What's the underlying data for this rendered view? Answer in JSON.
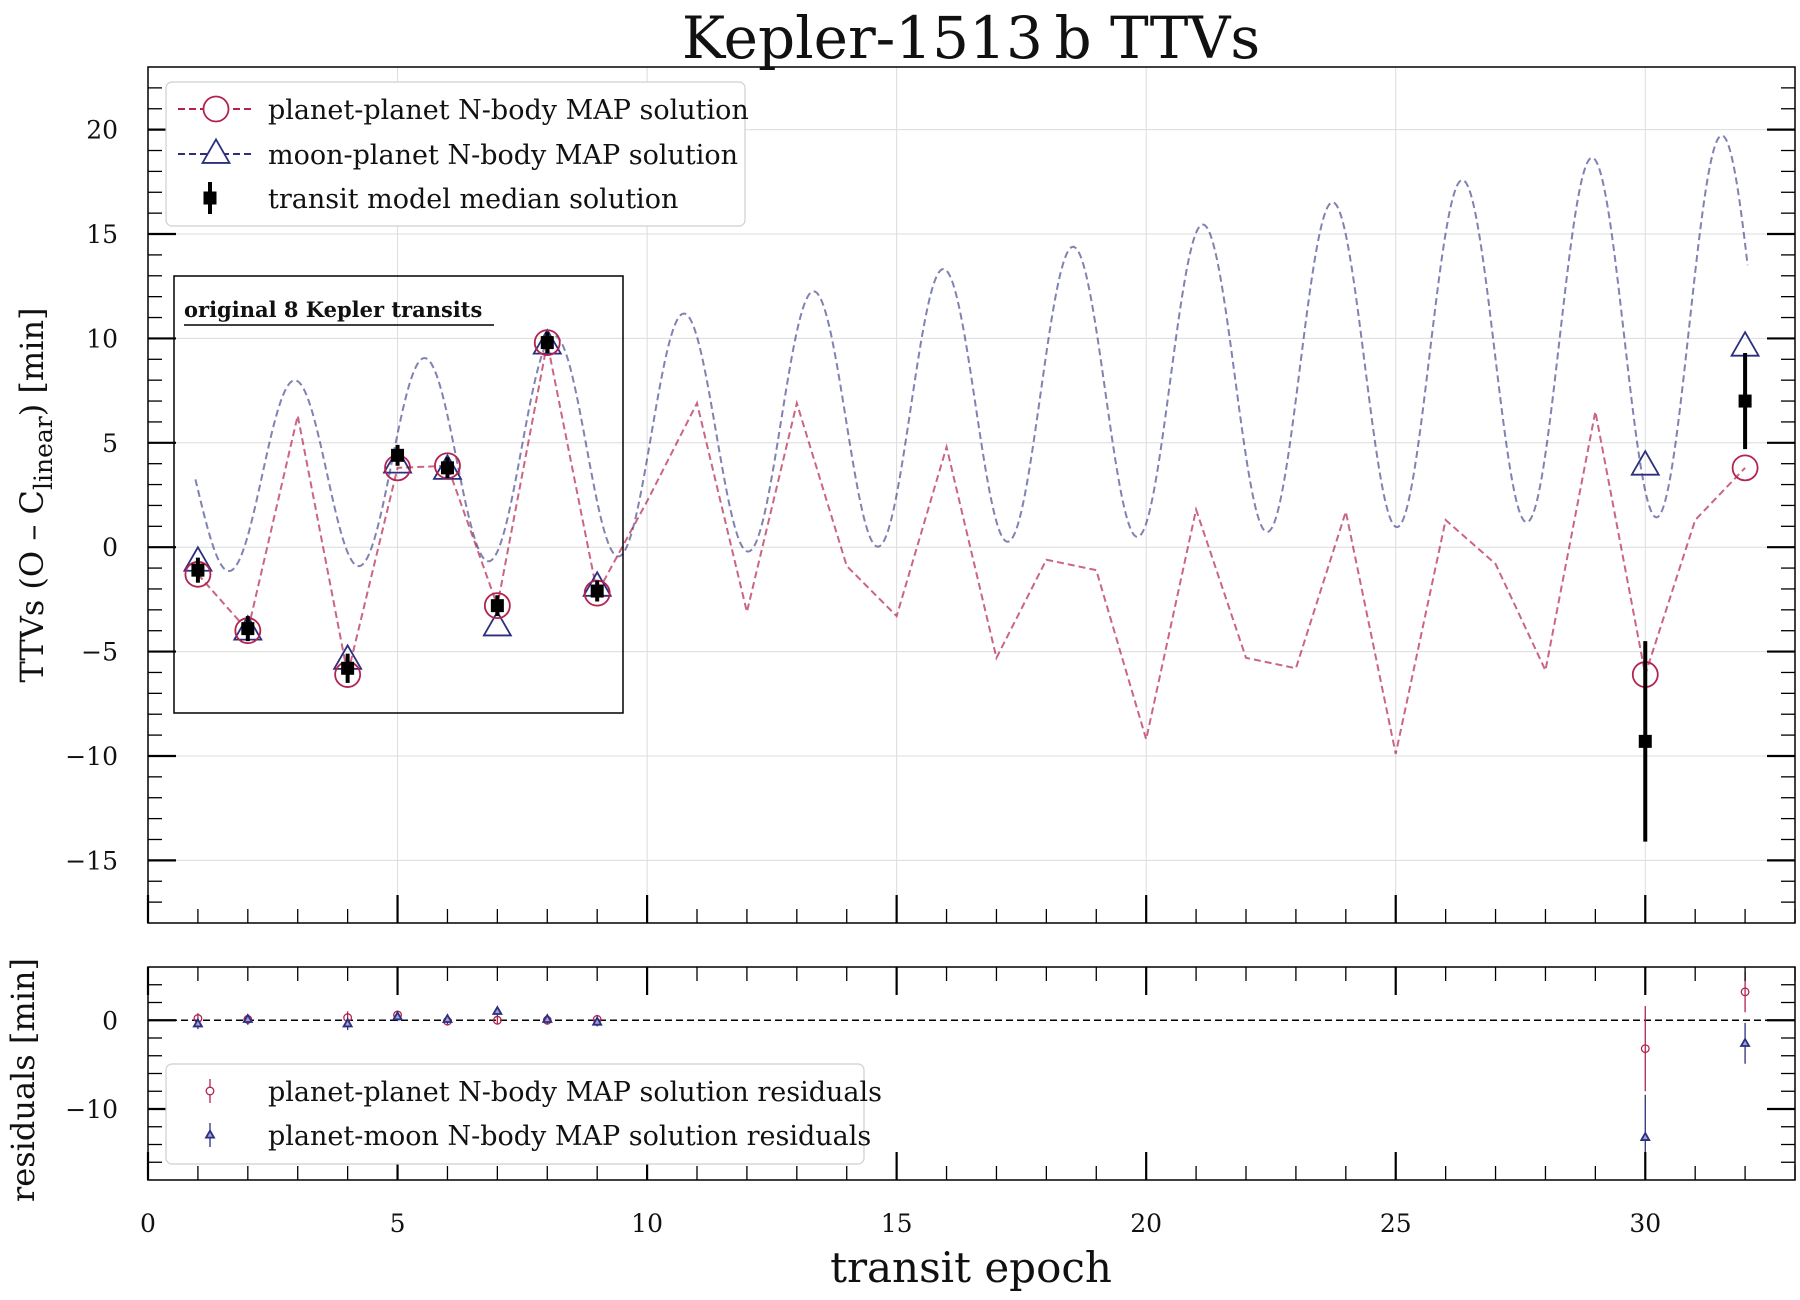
{
  "chart_data": [
    {
      "type": "line",
      "title": "Kepler-1513 b TTVs",
      "ylabel": "TTVs (O – C",
      "ylabel_sub": "linear",
      "ylabel_tail": ") [min]",
      "xlim": [
        0,
        33
      ],
      "ylim": [
        -18,
        23
      ],
      "yticks": [
        -15,
        -10,
        -5,
        0,
        5,
        10,
        15,
        20
      ],
      "ytick_labels": [
        "−15",
        "−10",
        "−5",
        "0",
        "5",
        "10",
        "15",
        "20"
      ],
      "grid": true,
      "legend_position": "top-left",
      "legend": [
        {
          "label": "planet-planet N-body MAP solution",
          "color": "#b3234e",
          "marker": "circle"
        },
        {
          "label": "moon-planet N-body MAP solution",
          "color": "#2c2f7e",
          "marker": "triangle"
        },
        {
          "label": "transit model median solution",
          "color": "#000000",
          "marker": "square-errorbar"
        }
      ],
      "inset_label": "original 8 Kepler transits",
      "series": [
        {
          "name": "planet-planet N-body MAP solution",
          "color": "#b3234e",
          "line_x": [
            1,
            2,
            3,
            4,
            5,
            6,
            7,
            8,
            9,
            10,
            11,
            12,
            13,
            14,
            15,
            16,
            17,
            18,
            19,
            20,
            21,
            22,
            23,
            24,
            25,
            26,
            27,
            28,
            29,
            30,
            31,
            32
          ],
          "line_y": [
            -1.3,
            -4.0,
            6.3,
            -6.1,
            3.8,
            3.9,
            -2.8,
            9.8,
            -2.2,
            2.2,
            6.9,
            -3.1,
            6.9,
            -0.9,
            -3.3,
            4.8,
            -5.3,
            -0.6,
            -1.1,
            -9.2,
            1.8,
            -5.3,
            -5.8,
            1.7,
            -9.9,
            1.3,
            -0.8,
            -5.9,
            6.5,
            -6.1,
            1.3,
            3.8
          ],
          "marker_x": [
            1,
            2,
            4,
            5,
            6,
            7,
            8,
            9,
            30,
            32
          ],
          "marker_y": [
            -1.3,
            -4.0,
            -6.1,
            3.8,
            3.9,
            -2.8,
            9.8,
            -2.2,
            -6.1,
            3.8
          ]
        },
        {
          "name": "moon-planet N-body MAP solution",
          "color": "#2c2f7e",
          "curve": "oscillating",
          "marker_x": [
            1,
            2,
            4,
            5,
            6,
            7,
            8,
            9,
            30,
            32
          ],
          "marker_y": [
            -0.7,
            -4.0,
            -5.4,
            4.0,
            3.7,
            -3.8,
            9.7,
            -1.9,
            3.9,
            9.6
          ]
        },
        {
          "name": "transit model median solution",
          "color": "#000000",
          "x": [
            1,
            2,
            4,
            5,
            6,
            7,
            8,
            9,
            30,
            32
          ],
          "y": [
            -1.1,
            -3.9,
            -5.8,
            4.4,
            3.8,
            -2.8,
            9.8,
            -2.1,
            -9.3,
            7.0
          ],
          "yerr": [
            0.6,
            0.6,
            0.7,
            0.5,
            0.5,
            0.5,
            0.5,
            0.5,
            4.8,
            2.3
          ]
        }
      ]
    },
    {
      "type": "scatter",
      "ylabel": "residuals [min]",
      "xlabel": "transit epoch",
      "xlim": [
        0,
        33
      ],
      "ylim": [
        -18,
        6
      ],
      "yticks": [
        -10,
        0
      ],
      "ytick_labels": [
        "−10",
        "0"
      ],
      "xticks": [
        0,
        5,
        10,
        15,
        20,
        25,
        30
      ],
      "xtick_labels": [
        "0",
        "5",
        "10",
        "15",
        "20",
        "25",
        "30"
      ],
      "legend_position": "bottom-left",
      "legend": [
        {
          "label": "planet-planet N-body MAP solution residuals",
          "color": "#b3234e",
          "marker": "circle"
        },
        {
          "label": "planet-moon N-body MAP solution residuals",
          "color": "#2c2f7e",
          "marker": "triangle"
        }
      ],
      "series": [
        {
          "name": "planet-planet N-body MAP solution residuals",
          "color": "#b3234e",
          "x": [
            1,
            2,
            4,
            5,
            6,
            7,
            8,
            9,
            30,
            32
          ],
          "y": [
            0.2,
            0.1,
            0.3,
            0.6,
            -0.1,
            0.0,
            0.0,
            0.1,
            -3.2,
            3.2
          ],
          "yerr": [
            0.6,
            0.6,
            0.7,
            0.5,
            0.5,
            0.5,
            0.5,
            0.5,
            4.8,
            2.3
          ]
        },
        {
          "name": "planet-moon N-body MAP solution residuals",
          "color": "#2c2f7e",
          "x": [
            1,
            2,
            4,
            5,
            6,
            7,
            8,
            9,
            30,
            32
          ],
          "y": [
            -0.4,
            0.1,
            -0.4,
            0.4,
            0.1,
            1.0,
            0.1,
            -0.2,
            -13.2,
            -2.6
          ],
          "yerr": [
            0.6,
            0.6,
            0.7,
            0.5,
            0.5,
            0.5,
            0.5,
            0.5,
            4.8,
            2.3
          ]
        }
      ]
    }
  ]
}
